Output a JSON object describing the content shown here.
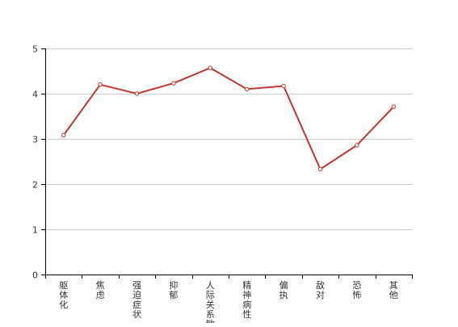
{
  "chart_data": {
    "type": "line",
    "categories": [
      "躯体化",
      "焦虑",
      "强迫症状",
      "抑郁",
      "人际关系敏感",
      "精神病性",
      "偏执",
      "敌对",
      "恐怖",
      "其他"
    ],
    "series": [
      {
        "values": [
          3.08,
          4.2,
          4.0,
          4.23,
          4.57,
          4.1,
          4.17,
          2.33,
          2.86,
          3.71
        ]
      }
    ],
    "ylim": [
      0,
      5
    ],
    "yticks": [
      0,
      1,
      2,
      3,
      4,
      5
    ],
    "ytick_labels": [
      "0",
      "1",
      "2",
      "3",
      "4",
      "5"
    ],
    "grid": true,
    "line_color": "#c23531",
    "title": "",
    "xlabel": "",
    "ylabel": ""
  }
}
